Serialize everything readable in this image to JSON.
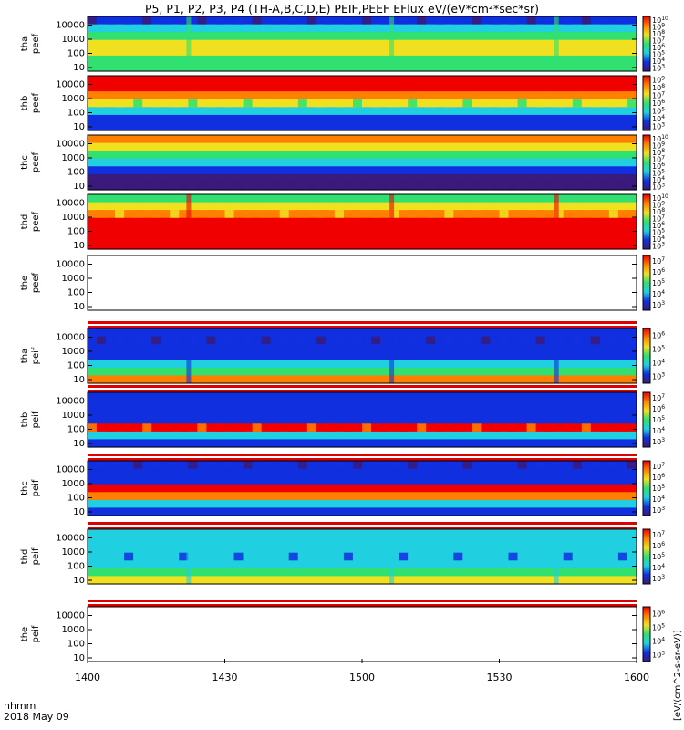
{
  "title": "P5, P1, P2, P3, P4 (TH-A,B,C,D,E) PEIF,PEEF EFlux eV/(eV*cm²*sec*sr)",
  "time_axis": {
    "ticks": [
      "1400",
      "1430",
      "1500",
      "1530",
      "1600"
    ],
    "row_label": "hhmm",
    "date": "2018 May 09"
  },
  "colorbar_unit": "[eV/(cm^2-s-sr-eV)]",
  "colors": {
    "low": "#3a1a7a",
    "blue": "#1030e0",
    "cyan": "#20d0e0",
    "green": "#30e070",
    "yellow": "#f0e020",
    "red": "#f00000",
    "fill_red": "#e00000"
  },
  "chart_data": {
    "type": "heatmap",
    "x_range": [
      "1400",
      "1600"
    ],
    "y_scale": "log",
    "y_ticks": [
      "10",
      "100",
      "1000",
      "10000"
    ],
    "panels": [
      {
        "label": "tha peef",
        "cbar_ticks": [
          "10^3",
          "10^4",
          "10^5",
          "10^6",
          "10^7",
          "10^8",
          "10^9",
          "10^10"
        ],
        "profile": [
          1,
          2,
          3,
          4,
          4,
          3,
          3
        ],
        "spike": 1
      },
      {
        "label": "thb peef",
        "cbar_ticks": [
          "10^3",
          "10^4",
          "10^5",
          "10^6",
          "10^7",
          "10^8",
          "10^9"
        ],
        "profile": [
          6,
          6,
          5,
          4,
          2,
          1,
          1
        ],
        "spike": 0
      },
      {
        "label": "thc peef",
        "cbar_ticks": [
          "10^3",
          "10^4",
          "10^5",
          "10^6",
          "10^7",
          "10^8",
          "10^9",
          "10^10"
        ],
        "profile": [
          5,
          4,
          3,
          2,
          1,
          0,
          0
        ],
        "spike": 0
      },
      {
        "label": "thd peef",
        "cbar_ticks": [
          "10^3",
          "10^4",
          "10^5",
          "10^6",
          "10^7",
          "10^8",
          "10^9",
          "10^10"
        ],
        "profile": [
          3,
          4,
          5,
          6,
          6,
          6,
          6
        ],
        "spike": 2
      },
      {
        "label": "the peef",
        "cbar_ticks": [
          "10^3",
          "10^4",
          "10^5",
          "10^6",
          "10^7"
        ],
        "profile": [],
        "spike": 0
      },
      {
        "label": "tha peif",
        "cbar_ticks": [
          "10^3",
          "10^4",
          "10^5",
          "10^6"
        ],
        "profile": [
          1,
          1,
          1,
          1,
          2,
          3,
          5
        ],
        "spike": 1
      },
      {
        "label": "thb peif",
        "cbar_ticks": [
          "10^3",
          "10^4",
          "10^5",
          "10^6",
          "10^7"
        ],
        "profile": [
          1,
          1,
          1,
          1,
          6,
          2,
          1
        ],
        "spike": 0
      },
      {
        "label": "thc peif",
        "cbar_ticks": [
          "10^3",
          "10^4",
          "10^5",
          "10^6",
          "10^7"
        ],
        "profile": [
          1,
          1,
          1,
          6,
          5,
          2,
          1
        ],
        "spike": 0
      },
      {
        "label": "thd peif",
        "cbar_ticks": [
          "10^3",
          "10^4",
          "10^5",
          "10^6",
          "10^7"
        ],
        "profile": [
          2,
          2,
          2,
          2,
          2,
          3,
          4
        ],
        "spike": 1
      },
      {
        "label": "the peif",
        "cbar_ticks": [
          "10^3",
          "10^4",
          "10^5",
          "10^6"
        ],
        "profile": [],
        "spike": 0
      }
    ]
  }
}
